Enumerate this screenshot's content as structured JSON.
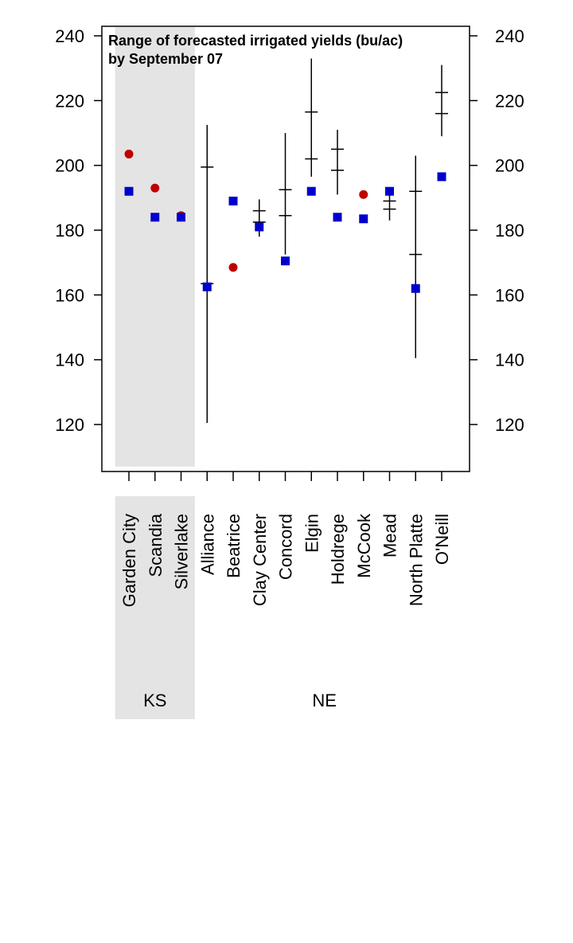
{
  "chart_data": {
    "type": "scatter",
    "title_lines": [
      "Range of forecasted irrigated yields (bu/ac)",
      "by September 07"
    ],
    "ylim": [
      107,
      242
    ],
    "yticks": [
      120,
      140,
      160,
      180,
      200,
      220,
      240
    ],
    "categories": [
      "Garden City",
      "Scandia",
      "Silverlake",
      "Alliance",
      "Beatrice",
      "Clay Center",
      "Concord",
      "Elgin",
      "Holdrege",
      "McCook",
      "Mead",
      "North Platte",
      "O'Neill"
    ],
    "groups": [
      {
        "label": "KS",
        "start": 0,
        "end": 2,
        "shaded": true
      },
      {
        "label": "NE",
        "start": 3,
        "end": 12,
        "shaded": false
      }
    ],
    "ranges": [
      {
        "category": "Alliance",
        "min": 120.5,
        "max": 212.5,
        "marks": [
          199.5,
          163.5
        ]
      },
      {
        "category": "Clay Center",
        "min": 178,
        "max": 189.5,
        "marks": [
          186,
          182.5
        ]
      },
      {
        "category": "Concord",
        "min": 172.5,
        "max": 210,
        "marks": [
          192.5,
          184.5
        ]
      },
      {
        "category": "Elgin",
        "min": 196.5,
        "max": 233,
        "marks": [
          216.5,
          202
        ]
      },
      {
        "category": "Holdrege",
        "min": 191,
        "max": 211,
        "marks": [
          205,
          198.5
        ]
      },
      {
        "category": "Mead",
        "min": 183,
        "max": 192,
        "marks": [
          189,
          186.5
        ]
      },
      {
        "category": "North Platte",
        "min": 140.5,
        "max": 203,
        "marks": [
          192,
          172.5
        ]
      },
      {
        "category": "O'Neill",
        "min": 209,
        "max": 231,
        "marks": [
          222.5,
          216
        ]
      }
    ],
    "series": [
      {
        "marker": "circle",
        "color": "#c00000",
        "points": [
          {
            "category": "Garden City",
            "value": 203.5
          },
          {
            "category": "Scandia",
            "value": 193
          },
          {
            "category": "Silverlake",
            "value": 184.5
          },
          {
            "category": "Beatrice",
            "value": 168.5
          },
          {
            "category": "McCook",
            "value": 191
          }
        ]
      },
      {
        "marker": "square",
        "color": "#0000cc",
        "points": [
          {
            "category": "Garden City",
            "value": 192
          },
          {
            "category": "Scandia",
            "value": 184
          },
          {
            "category": "Silverlake",
            "value": 184
          },
          {
            "category": "Alliance",
            "value": 162.5
          },
          {
            "category": "Beatrice",
            "value": 189
          },
          {
            "category": "Clay Center",
            "value": 181
          },
          {
            "category": "Concord",
            "value": 170.5
          },
          {
            "category": "Elgin",
            "value": 192
          },
          {
            "category": "Holdrege",
            "value": 184
          },
          {
            "category": "McCook",
            "value": 183.5
          },
          {
            "category": "Mead",
            "value": 192
          },
          {
            "category": "North Platte",
            "value": 162
          },
          {
            "category": "O'Neill",
            "value": 196.5
          }
        ]
      }
    ],
    "colors": {
      "shade": "#e4e4e4",
      "axis": "#000000",
      "range_line": "#000000"
    }
  }
}
